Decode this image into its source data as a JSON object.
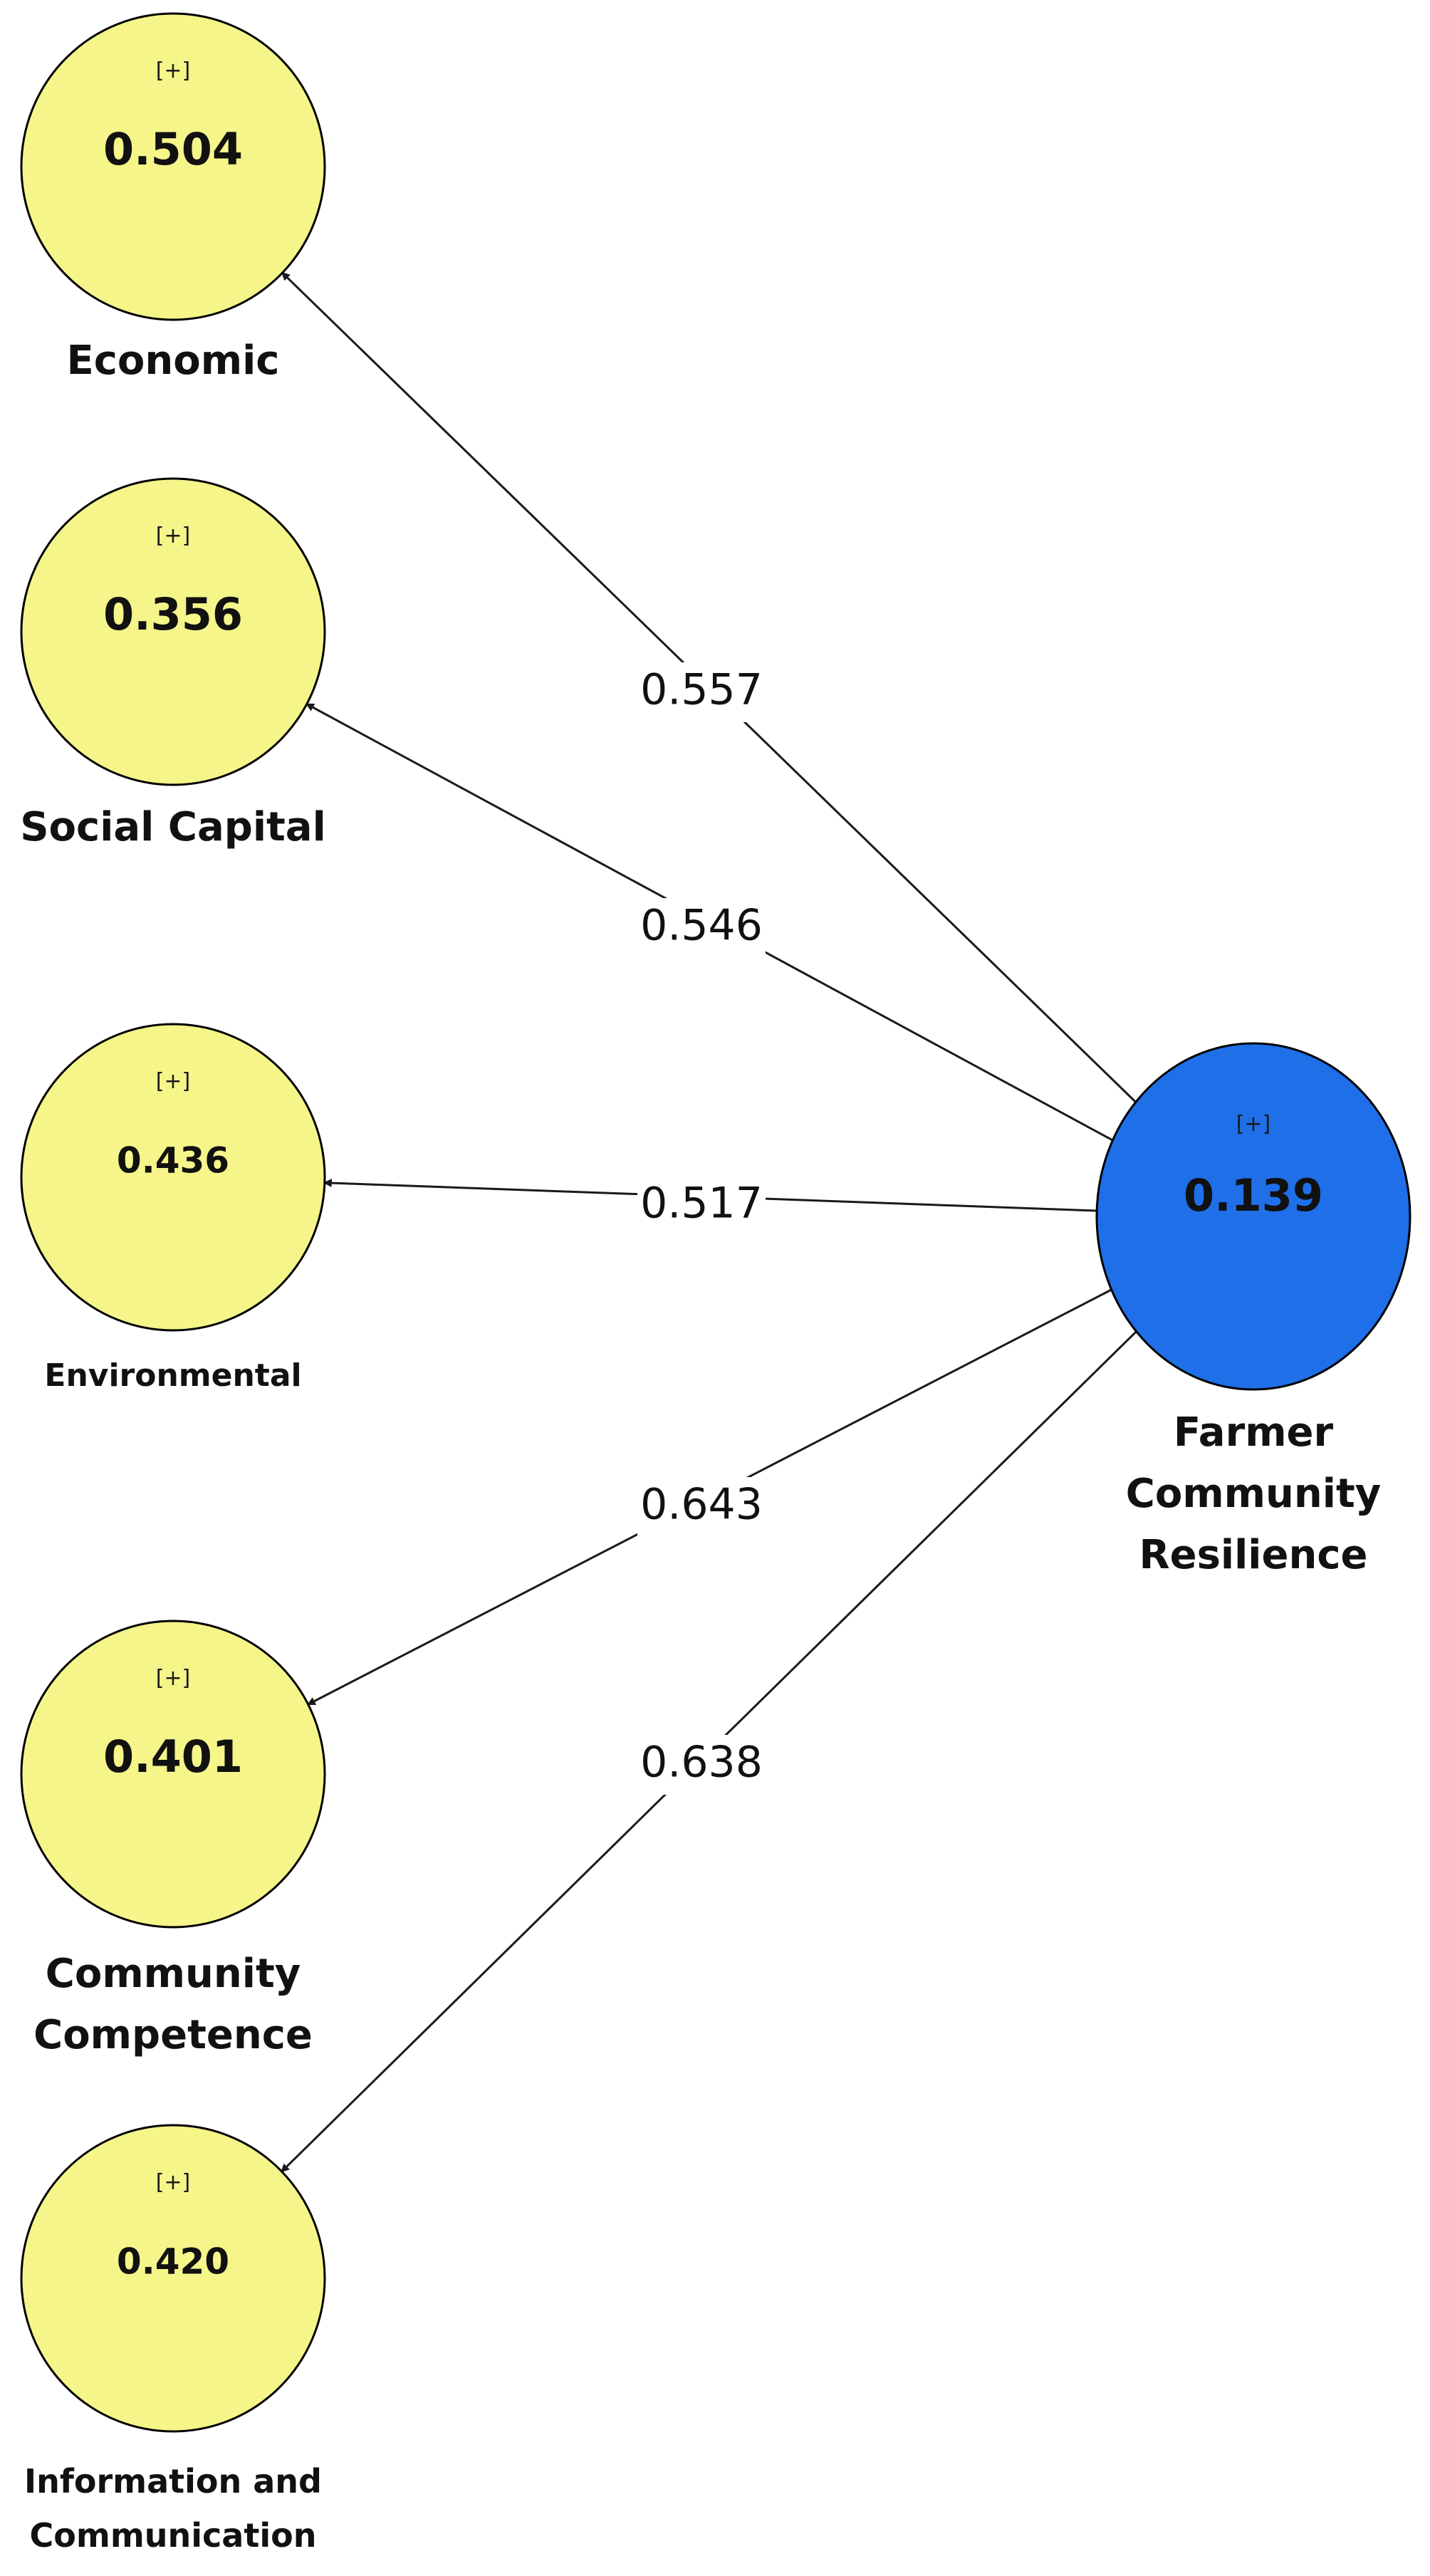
{
  "colors": {
    "indicator_node_fill": "#f5f58a",
    "target_node_fill": "#1f6fe8",
    "edge": "#1a1a1a"
  },
  "target_node": {
    "id": "farmer-community-resilience",
    "expand_marker": "[+]",
    "value": "0.139",
    "label_lines": [
      "Farmer",
      "Community",
      "Resilience"
    ]
  },
  "indicator_nodes": [
    {
      "id": "economic",
      "expand_marker": "[+]",
      "value": "0.504",
      "label_lines": [
        "Economic"
      ]
    },
    {
      "id": "social-capital",
      "expand_marker": "[+]",
      "value": "0.356",
      "label_lines": [
        "Social Capital"
      ]
    },
    {
      "id": "environmental",
      "expand_marker": "[+]",
      "value": "0.436",
      "label_lines": [
        "Environmental"
      ]
    },
    {
      "id": "community-competence",
      "expand_marker": "[+]",
      "value": "0.401",
      "label_lines": [
        "Community",
        "Competence"
      ]
    },
    {
      "id": "information-and-communication",
      "expand_marker": "[+]",
      "value": "0.420",
      "label_lines": [
        "Information and",
        "Communication"
      ]
    }
  ],
  "edges": [
    {
      "from": "farmer-community-resilience",
      "to": "economic",
      "weight": "0.557"
    },
    {
      "from": "farmer-community-resilience",
      "to": "social-capital",
      "weight": "0.546"
    },
    {
      "from": "farmer-community-resilience",
      "to": "environmental",
      "weight": "0.517"
    },
    {
      "from": "farmer-community-resilience",
      "to": "community-competence",
      "weight": "0.643"
    },
    {
      "from": "farmer-community-resilience",
      "to": "information-and-communication",
      "weight": "0.638"
    }
  ]
}
